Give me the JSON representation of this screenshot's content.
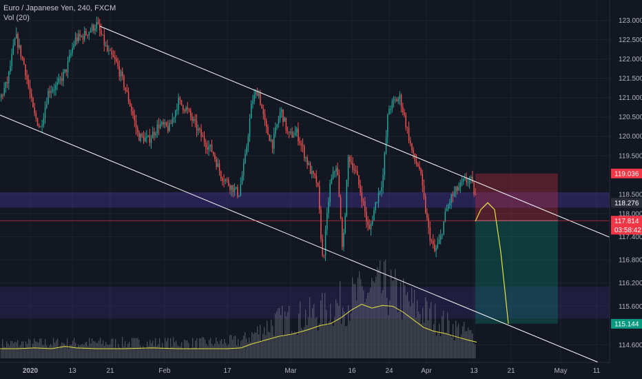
{
  "header": {
    "symbol_title": "Euro / Japanese Yen, 240, FXCM",
    "indicator": "Vol (20)"
  },
  "colors": {
    "background": "#131722",
    "up": "#26a69a",
    "down": "#ef5350",
    "zone": "#5b3cc4",
    "stop_zone": "#f23645",
    "target_zone": "#089981",
    "projection": "#e8e342",
    "volume_ma": "#e8e342",
    "trendline": "#ffffff"
  },
  "chart_data": {
    "type": "candlestick",
    "title": "Euro / Japanese Yen, 240, FXCM",
    "price_range": [
      114.25,
      123.35
    ],
    "price_ticks": [
      "123.000",
      "122.500",
      "122.000",
      "121.500",
      "121.000",
      "120.500",
      "120.000",
      "119.500",
      "118.500",
      "118.000",
      "117.400",
      "116.800",
      "116.200",
      "115.600",
      "114.600"
    ],
    "price_tick_values": [
      123.0,
      122.5,
      122.0,
      121.5,
      121.0,
      120.5,
      120.0,
      119.5,
      118.5,
      118.0,
      117.4,
      116.8,
      116.2,
      115.6,
      114.6
    ],
    "time_labels": [
      {
        "label": "2020",
        "bold": true
      },
      {
        "label": "13",
        "bold": false
      },
      {
        "label": "21",
        "bold": false
      },
      {
        "label": "Feb",
        "bold": false
      },
      {
        "label": "17",
        "bold": false
      },
      {
        "label": "Mar",
        "bold": false
      },
      {
        "label": "16",
        "bold": false
      },
      {
        "label": "24",
        "bold": false
      },
      {
        "label": "Apr",
        "bold": false
      },
      {
        "label": "13",
        "bold": false
      },
      {
        "label": "21",
        "bold": false
      },
      {
        "label": "May",
        "bold": false
      },
      {
        "label": "11",
        "bold": false
      }
    ],
    "price_path": [
      [
        0,
        121.0
      ],
      [
        10,
        121.4
      ],
      [
        22,
        122.6
      ],
      [
        35,
        121.8
      ],
      [
        48,
        120.6
      ],
      [
        58,
        120.2
      ],
      [
        70,
        121.2
      ],
      [
        82,
        121.3
      ],
      [
        95,
        121.7
      ],
      [
        108,
        122.5
      ],
      [
        120,
        122.6
      ],
      [
        140,
        122.9
      ],
      [
        155,
        122.2
      ],
      [
        168,
        121.9
      ],
      [
        180,
        121.3
      ],
      [
        190,
        120.7
      ],
      [
        200,
        120.0
      ],
      [
        215,
        119.9
      ],
      [
        230,
        120.3
      ],
      [
        245,
        120.2
      ],
      [
        258,
        120.9
      ],
      [
        270,
        120.7
      ],
      [
        282,
        120.3
      ],
      [
        295,
        119.9
      ],
      [
        308,
        119.6
      ],
      [
        320,
        119.0
      ],
      [
        335,
        118.7
      ],
      [
        346,
        118.5
      ],
      [
        355,
        119.4
      ],
      [
        365,
        120.9
      ],
      [
        374,
        121.2
      ],
      [
        385,
        120.2
      ],
      [
        395,
        119.8
      ],
      [
        407,
        120.7
      ],
      [
        418,
        120.0
      ],
      [
        430,
        120.1
      ],
      [
        440,
        119.6
      ],
      [
        452,
        119.0
      ],
      [
        460,
        118.8
      ],
      [
        468,
        116.7
      ],
      [
        478,
        118.7
      ],
      [
        488,
        119.3
      ],
      [
        497,
        117.0
      ],
      [
        505,
        119.5
      ],
      [
        515,
        119.1
      ],
      [
        525,
        118.4
      ],
      [
        535,
        117.5
      ],
      [
        545,
        118.3
      ],
      [
        555,
        118.9
      ],
      [
        563,
        120.7
      ],
      [
        572,
        120.9
      ],
      [
        580,
        121.0
      ],
      [
        590,
        120.2
      ],
      [
        600,
        119.4
      ],
      [
        608,
        119.2
      ],
      [
        616,
        118.2
      ],
      [
        622,
        117.5
      ],
      [
        630,
        117.0
      ],
      [
        638,
        117.3
      ],
      [
        646,
        118.0
      ],
      [
        654,
        118.4
      ],
      [
        662,
        118.6
      ],
      [
        672,
        118.8
      ],
      [
        682,
        118.9
      ],
      [
        690,
        118.4
      ]
    ],
    "last_candle_index": 690,
    "trendlines": [
      {
        "name": "upper-channel",
        "from": [
          145,
          122.85
        ],
        "to": [
          890,
          117.35
        ]
      },
      {
        "name": "lower-channel",
        "from": [
          0,
          120.55
        ],
        "to": [
          868,
          114.15
        ]
      }
    ],
    "zones": [
      {
        "name": "resistance-zone",
        "from": 118.15,
        "to": 118.55
      },
      {
        "name": "support-zone",
        "from": 115.28,
        "to": 116.1
      }
    ],
    "position": {
      "entry": 117.815,
      "stop": 119.036,
      "target": 115.144,
      "x_start": 690,
      "x_end": 810
    },
    "current_price": 117.814,
    "price_tags": [
      {
        "label": "119.036",
        "value": 119.036,
        "color": "#f23645"
      },
      {
        "label": "118.276",
        "value": 118.276,
        "color": "#2a2e39"
      },
      {
        "label": "117.814",
        "value": 117.814,
        "color": "#f23645"
      },
      {
        "label": "03:58:42",
        "value": 117.58,
        "color": "#f23645"
      },
      {
        "label": "115.144",
        "value": 115.144,
        "color": "#089981"
      }
    ],
    "projection_path": [
      [
        690,
        117.8
      ],
      [
        698,
        118.1
      ],
      [
        708,
        118.28
      ],
      [
        718,
        118.1
      ],
      [
        727,
        117.0
      ],
      [
        733,
        116.0
      ],
      [
        738,
        115.14
      ]
    ],
    "volume_ma_path": [
      [
        0,
        114.5
      ],
      [
        25,
        114.5
      ],
      [
        50,
        114.52
      ],
      [
        75,
        114.5
      ],
      [
        95,
        114.56
      ],
      [
        110,
        114.52
      ],
      [
        140,
        114.5
      ],
      [
        180,
        114.5
      ],
      [
        220,
        114.52
      ],
      [
        260,
        114.5
      ],
      [
        300,
        114.5
      ],
      [
        330,
        114.5
      ],
      [
        350,
        114.52
      ],
      [
        365,
        114.62
      ],
      [
        385,
        114.72
      ],
      [
        405,
        114.82
      ],
      [
        425,
        114.88
      ],
      [
        445,
        114.98
      ],
      [
        465,
        115.1
      ],
      [
        480,
        115.15
      ],
      [
        495,
        115.3
      ],
      [
        510,
        115.5
      ],
      [
        525,
        115.65
      ],
      [
        540,
        115.55
      ],
      [
        555,
        115.62
      ],
      [
        570,
        115.6
      ],
      [
        585,
        115.45
      ],
      [
        600,
        115.25
      ],
      [
        615,
        115.05
      ],
      [
        630,
        114.95
      ],
      [
        645,
        114.9
      ],
      [
        660,
        114.82
      ],
      [
        680,
        114.72
      ],
      [
        692,
        114.67
      ]
    ],
    "volume_profile": [
      [
        0,
        114.62
      ],
      [
        100,
        114.65
      ],
      [
        300,
        114.65
      ],
      [
        350,
        114.7
      ],
      [
        400,
        115.2
      ],
      [
        460,
        115.4
      ],
      [
        500,
        115.7
      ],
      [
        540,
        116.0
      ],
      [
        560,
        116.05
      ],
      [
        600,
        115.6
      ],
      [
        650,
        115.1
      ],
      [
        692,
        114.8
      ]
    ]
  }
}
